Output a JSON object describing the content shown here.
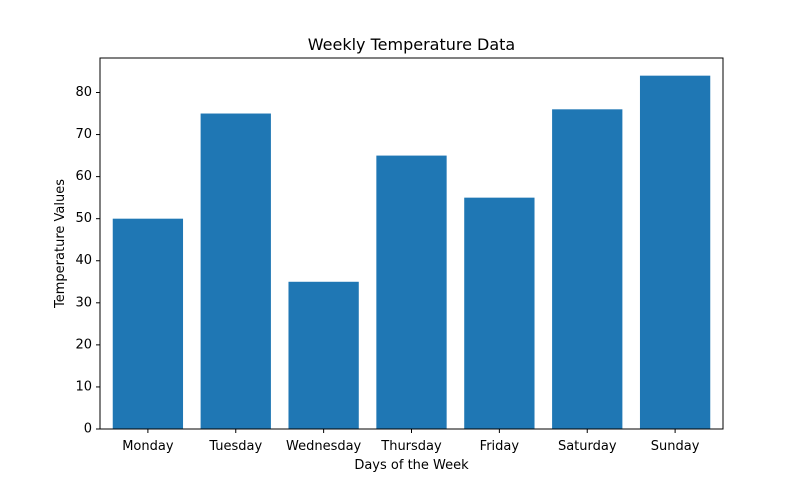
{
  "chart_data": {
    "type": "bar",
    "title": "Weekly Temperature Data",
    "xlabel": "Days of the Week",
    "ylabel": "Temperature Values",
    "categories": [
      "Monday",
      "Tuesday",
      "Wednesday",
      "Thursday",
      "Friday",
      "Saturday",
      "Sunday"
    ],
    "values": [
      50,
      75,
      35,
      65,
      55,
      76,
      84
    ],
    "ylim": [
      0,
      88.2
    ],
    "yticks": [
      0,
      10,
      20,
      30,
      40,
      50,
      60,
      70,
      80
    ],
    "grid": false,
    "bar_color": "#1f77b4"
  }
}
